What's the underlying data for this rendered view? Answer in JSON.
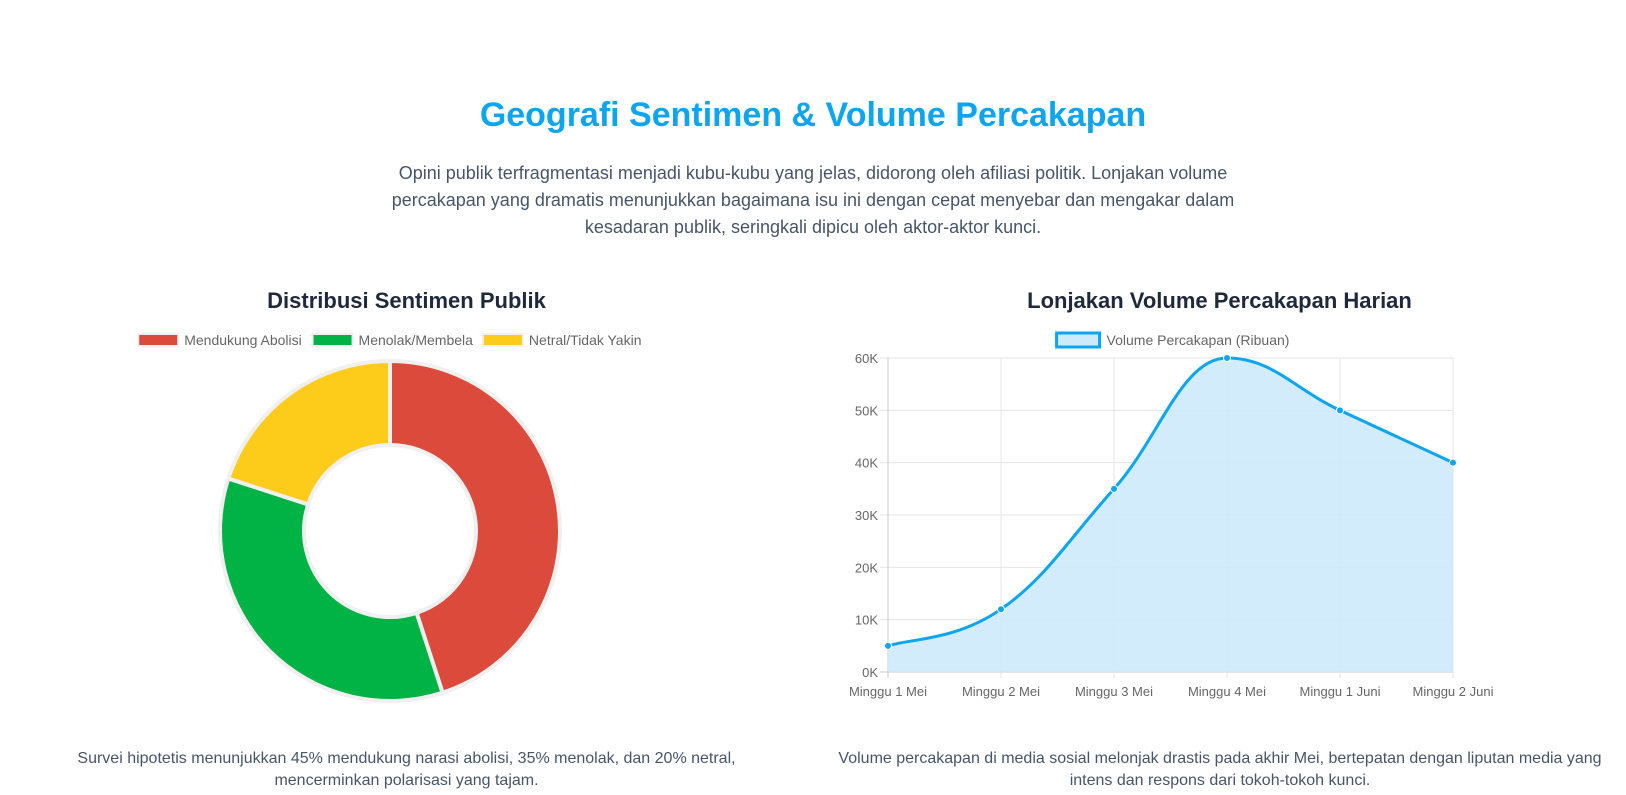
{
  "header": {
    "title": "Geografi Sentimen & Volume Percakapan",
    "intro": "Opini publik terfragmentasi menjadi kubu-kubu yang jelas, didorong oleh afiliasi politik. Lonjakan volume percakapan yang dramatis menunjukkan bagaimana isu ini dengan cepat menyebar dan mengakar dalam kesadaran publik, seringkali dipicu oleh aktor-aktor kunci."
  },
  "sentiment_section": {
    "caption": "Survei hipotetis menunjukkan 45% mendukung narasi abolisi, 35% menolak, dan 20% netral, mencerminkan polarisasi yang tajam."
  },
  "volume_section": {
    "caption": "Volume percakapan di media sosial melonjak drastis pada akhir Mei, bertepatan dengan liputan media yang intens dan respons dari tokoh-tokoh kunci."
  },
  "chart_data": [
    {
      "type": "pie",
      "title": "Distribusi Sentimen Publik",
      "categories": [
        "Mendukung Abolisi",
        "Menolak/Membela",
        "Netral/Tidak Yakin"
      ],
      "values": [
        45,
        35,
        20
      ],
      "colors": [
        "#dc4a3c",
        "#00b344",
        "#fdcb1a"
      ],
      "legend_position": "top"
    },
    {
      "type": "area",
      "title": "Lonjakan Volume Percakapan Harian",
      "categories": [
        "Minggu 1 Mei",
        "Minggu 2 Mei",
        "Minggu 3 Mei",
        "Minggu 4 Mei",
        "Minggu 1 Juni",
        "Minggu 2 Juni"
      ],
      "series": [
        {
          "name": "Volume Percakapan (Ribuan)",
          "values": [
            5000,
            12000,
            35000,
            60000,
            50000,
            40000
          ]
        }
      ],
      "y_ticks": [
        "0K",
        "10K",
        "20K",
        "30K",
        "40K",
        "50K",
        "60K"
      ],
      "ylim": [
        0,
        60000
      ],
      "line_color": "#0ea5f0",
      "fill_color": "#cdeafb",
      "grid": true,
      "legend_position": "top"
    }
  ]
}
